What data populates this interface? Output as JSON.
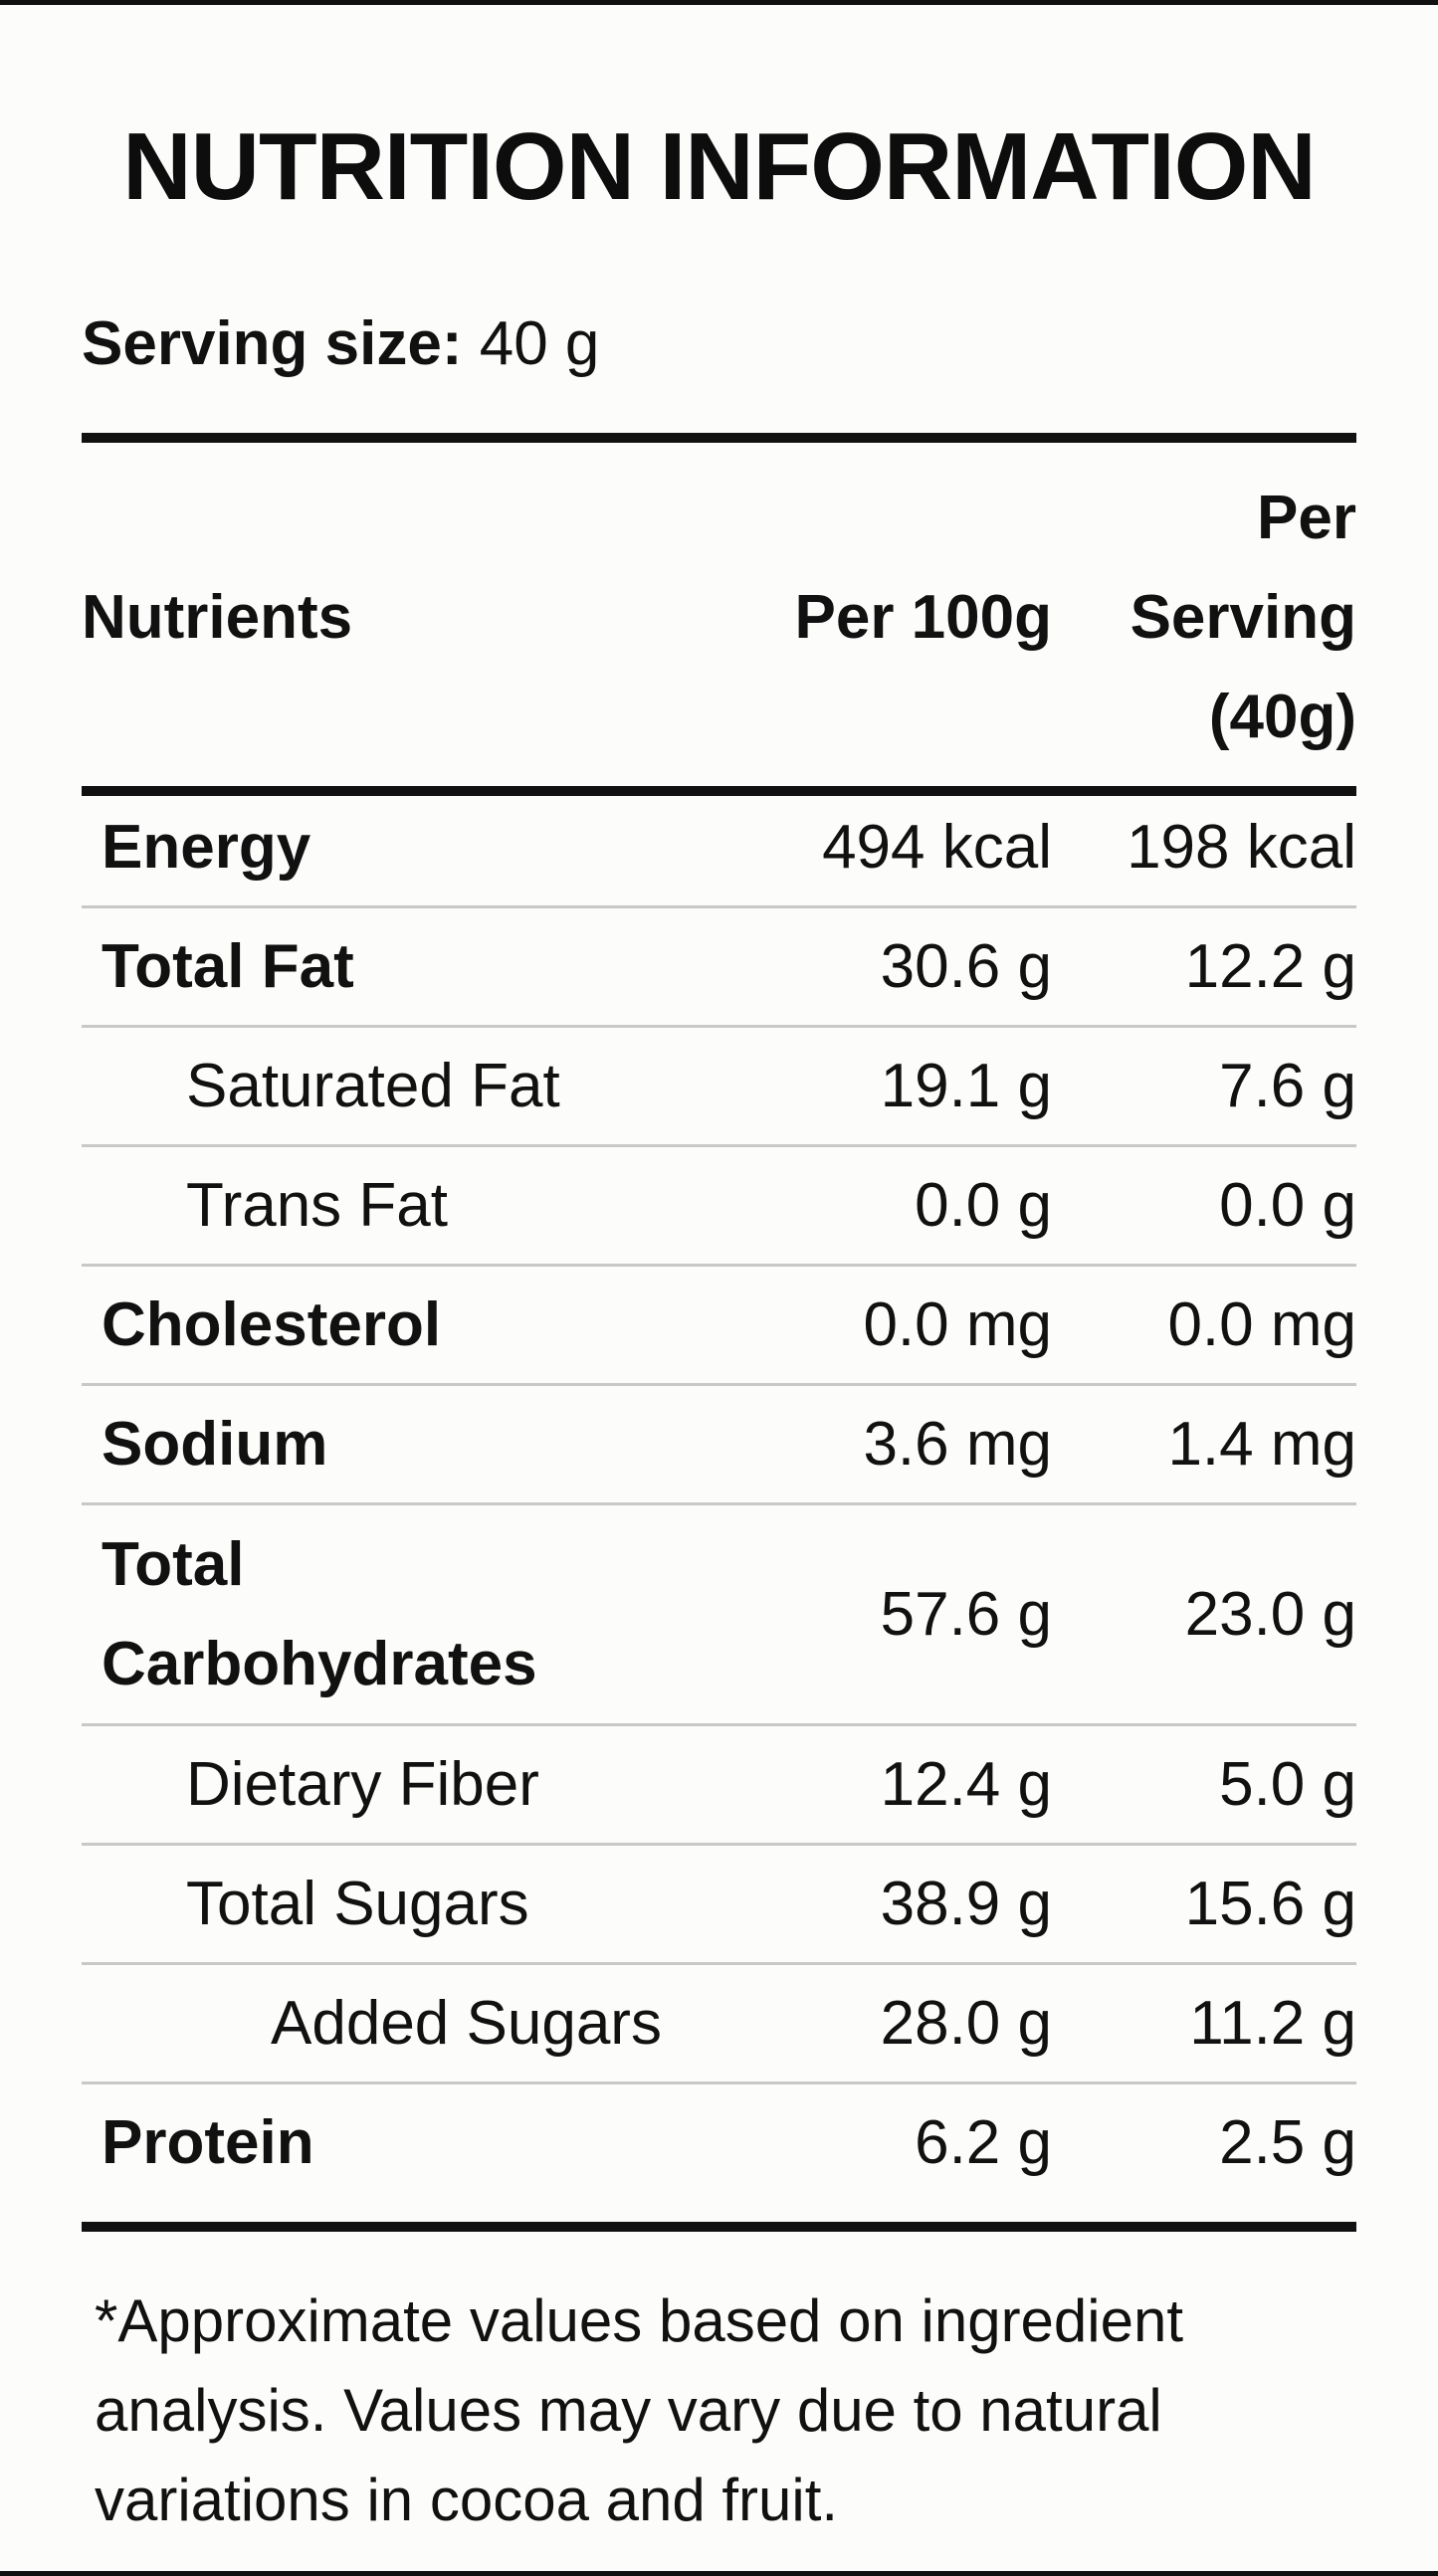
{
  "title": "NUTRITION INFORMATION",
  "serving": {
    "label": "Serving size:",
    "value": "40 g"
  },
  "table": {
    "headers": {
      "nutrients": "Nutrients",
      "per100": "Per 100g",
      "perServing_line1": "Per",
      "perServing_line2": "Serving",
      "perServing_line3": "(40g)"
    },
    "rows": [
      {
        "name": "Energy",
        "per100": "494 kcal",
        "perServing": "198 kcal"
      },
      {
        "name": "Total Fat",
        "per100": "30.6 g",
        "perServing": "12.2 g"
      },
      {
        "name": "Saturated Fat",
        "per100": "19.1 g",
        "perServing": "7.6 g"
      },
      {
        "name": "Trans Fat",
        "per100": "0.0 g",
        "perServing": "0.0 g"
      },
      {
        "name": "Cholesterol",
        "per100": "0.0 mg",
        "perServing": "0.0 mg"
      },
      {
        "name": "Sodium",
        "per100": "3.6 mg",
        "perServing": "1.4 mg"
      },
      {
        "name_line1": "Total",
        "name_line2": "Carbohydrates",
        "per100": "57.6 g",
        "perServing": "23.0 g"
      },
      {
        "name": "Dietary Fiber",
        "per100": "12.4 g",
        "perServing": "5.0 g"
      },
      {
        "name": "Total Sugars",
        "per100": "38.9 g",
        "perServing": "15.6 g"
      },
      {
        "name": "Added Sugars",
        "per100": "28.0 g",
        "perServing": "11.2 g"
      },
      {
        "name": "Protein",
        "per100": "6.2 g",
        "perServing": "2.5 g"
      }
    ]
  },
  "footnote": "*Approximate values based on ingredient analysis. Values may vary due to natural variations in cocoa and fruit."
}
